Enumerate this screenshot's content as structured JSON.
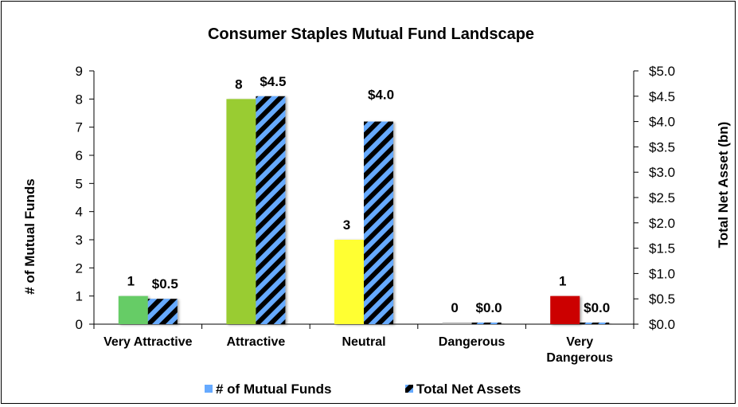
{
  "chart_data": {
    "type": "bar",
    "title": "Consumer Staples Mutual Fund Landscape",
    "categories": [
      "Very Attractive",
      "Attractive",
      "Neutral",
      "Dangerous",
      "Very Dangerous"
    ],
    "category_lines": [
      [
        "Very Attractive"
      ],
      [
        "Attractive"
      ],
      [
        "Neutral"
      ],
      [
        "Dangerous"
      ],
      [
        "Very",
        "Dangerous"
      ]
    ],
    "series": [
      {
        "name": "# of Mutual Funds",
        "axis": "left",
        "values": [
          1,
          8,
          3,
          0,
          1
        ],
        "labels": [
          "1",
          "8",
          "3",
          "0",
          "1"
        ],
        "colors": [
          "#66cc66",
          "#99cc33",
          "#ffff33",
          "#b0b0b0",
          "#cc0000"
        ]
      },
      {
        "name": "Total Net Assets",
        "axis": "right",
        "values": [
          0.5,
          4.5,
          4.0,
          0.0,
          0.03
        ],
        "labels": [
          "$0.5",
          "$4.5",
          "$4.0",
          "$0.0",
          "$0.0"
        ],
        "pattern": "diagonal-stripes",
        "colors": [
          "#000000",
          "#66aaff"
        ]
      }
    ],
    "ylabel": "# of Mutual Funds",
    "y2label": "Total Net Asset (bn)",
    "ylim": [
      0,
      9
    ],
    "y2lim": [
      0,
      5
    ],
    "yticks": [
      "0",
      "1",
      "2",
      "3",
      "4",
      "5",
      "6",
      "7",
      "8",
      "9"
    ],
    "y2ticks": [
      "$0.0",
      "$0.5",
      "$1.0",
      "$1.5",
      "$2.0",
      "$2.5",
      "$3.0",
      "$3.5",
      "$4.0",
      "$4.5",
      "$5.0"
    ],
    "legend": {
      "position": "bottom"
    },
    "grid": false
  }
}
